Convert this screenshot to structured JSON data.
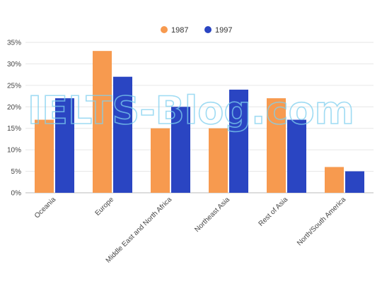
{
  "watermark": "IELTS-Blog.com",
  "chart_data": {
    "type": "bar",
    "categories": [
      "Oceania",
      "Europe",
      "Middle East and North Africa",
      "Northeast Asia",
      "Rest of Asia",
      "North/South America"
    ],
    "series": [
      {
        "name": "1987",
        "color": "#f79a4f",
        "values": [
          17,
          33,
          15,
          15,
          22,
          6
        ]
      },
      {
        "name": "1997",
        "color": "#2a45c2",
        "values": [
          22,
          27,
          20,
          24,
          17,
          5
        ]
      }
    ],
    "yticks": [
      "0%",
      "5%",
      "10%",
      "15%",
      "20%",
      "25%",
      "30%",
      "35%"
    ],
    "ylim": [
      0,
      35
    ],
    "grid": true,
    "legend_position": "top-center"
  }
}
